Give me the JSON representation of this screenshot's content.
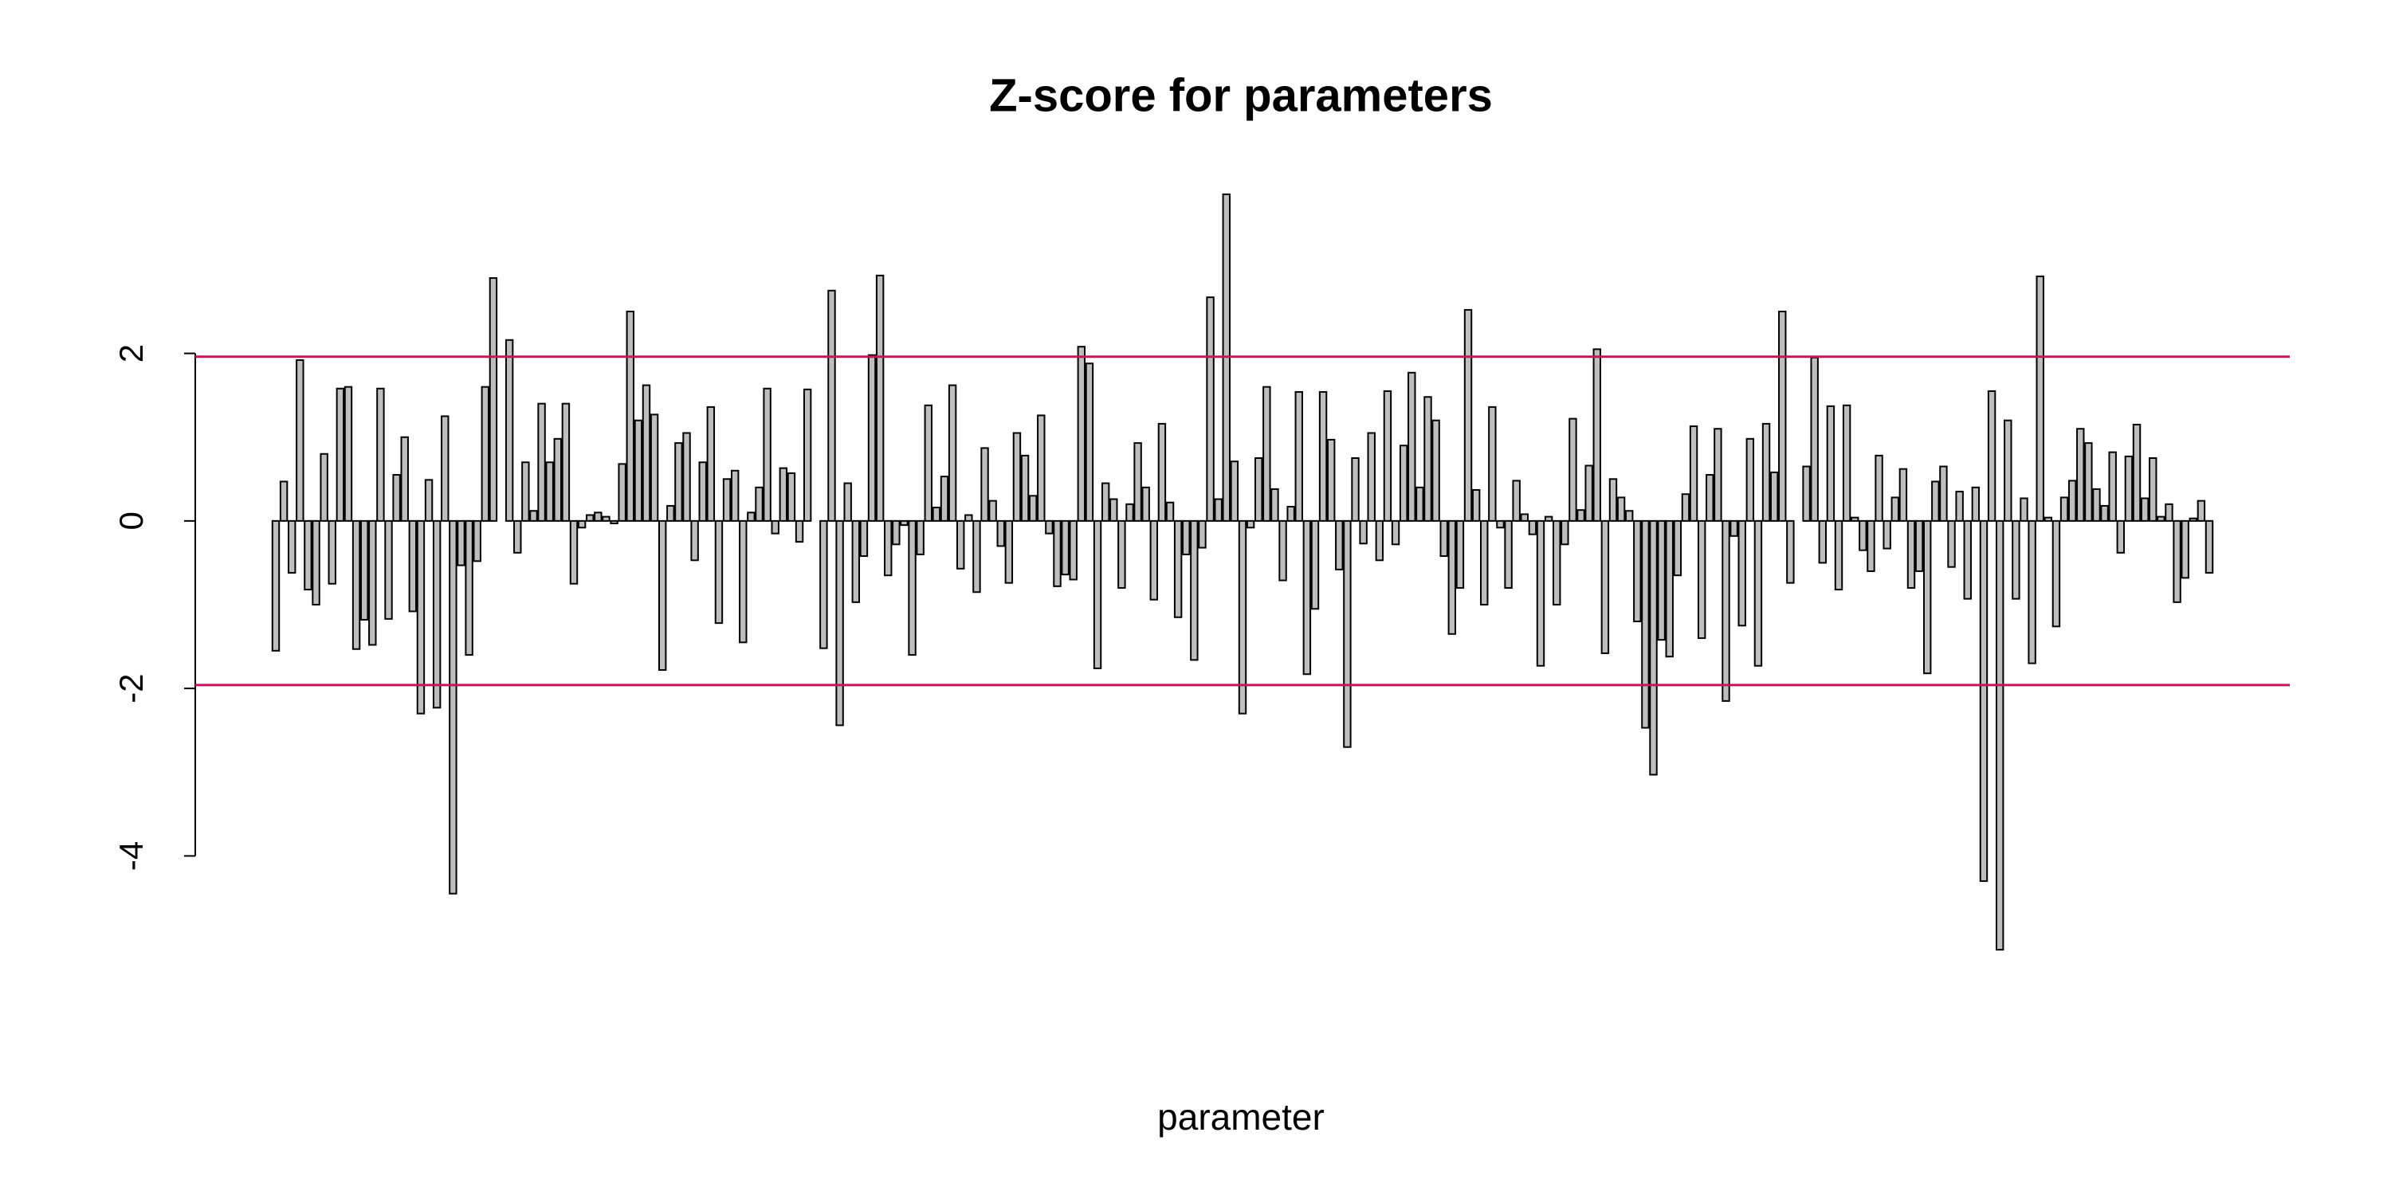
{
  "chart_data": {
    "type": "bar",
    "title": "Z-score for parameters",
    "x_label": "parameter",
    "color": "#bebebe",
    "ylim": [
      -5.48,
      4.26
    ],
    "yticks": [
      -4,
      -2,
      0,
      2
    ],
    "hlines": [
      1.96,
      -1.96
    ],
    "hline_color": "#c2185b",
    "values": [
      -1.55,
      0.47,
      -0.62,
      1.92,
      -0.82,
      -1.0,
      0.8,
      -0.75,
      1.58,
      1.6,
      -1.53,
      -1.18,
      -1.48,
      1.58,
      -1.17,
      0.55,
      1.0,
      -1.08,
      -2.3,
      0.49,
      -2.23,
      1.25,
      -4.45,
      -0.53,
      -1.6,
      -0.48,
      1.6,
      2.9,
      0.0,
      2.16,
      -0.38,
      0.7,
      0.12,
      1.4,
      0.7,
      0.98,
      1.4,
      -0.75,
      -0.08,
      0.07,
      0.1,
      0.05,
      -0.03,
      0.68,
      2.5,
      1.2,
      1.62,
      1.27,
      -1.78,
      0.18,
      0.93,
      1.05,
      -0.47,
      0.7,
      1.36,
      -1.22,
      0.5,
      0.6,
      -1.45,
      0.1,
      0.4,
      1.58,
      -0.15,
      0.63,
      0.57,
      -0.25,
      1.57,
      0.0,
      -1.52,
      2.75,
      -2.44,
      0.45,
      -0.97,
      -0.42,
      1.98,
      2.93,
      -0.65,
      -0.28,
      -0.05,
      -1.6,
      -0.4,
      1.38,
      0.16,
      0.53,
      1.62,
      -0.57,
      0.07,
      -0.85,
      0.87,
      0.24,
      -0.3,
      -0.74,
      1.05,
      0.78,
      0.3,
      1.26,
      -0.15,
      -0.78,
      -0.64,
      -0.7,
      2.08,
      1.88,
      -1.76,
      0.45,
      0.26,
      -0.8,
      0.2,
      0.93,
      0.4,
      -0.94,
      1.16,
      0.22,
      -1.15,
      -0.4,
      -1.66,
      -0.32,
      2.67,
      0.26,
      3.9,
      0.71,
      -2.3,
      -0.08,
      0.75,
      1.6,
      0.38,
      -0.71,
      0.17,
      1.54,
      -1.83,
      -1.05,
      1.54,
      0.97,
      -0.58,
      -2.7,
      0.75,
      -0.27,
      1.05,
      -0.47,
      1.55,
      -0.28,
      0.9,
      1.77,
      0.4,
      1.48,
      1.2,
      -0.42,
      -1.35,
      -0.8,
      2.52,
      0.37,
      -1.0,
      1.36,
      -0.08,
      -0.8,
      0.48,
      0.08,
      -0.16,
      -1.73,
      0.05,
      -1.0,
      -0.28,
      1.22,
      0.13,
      0.66,
      2.05,
      -1.58,
      0.5,
      0.28,
      0.12,
      -1.2,
      -2.47,
      -3.03,
      -1.42,
      -1.62,
      -0.65,
      0.32,
      1.13,
      -1.4,
      0.55,
      1.1,
      -2.15,
      -0.18,
      -1.25,
      0.98,
      -1.73,
      1.16,
      0.58,
      2.5,
      -0.74,
      0.0,
      0.65,
      1.95,
      -0.5,
      1.37,
      -0.82,
      1.38,
      0.04,
      -0.35,
      -0.6,
      0.78,
      -0.33,
      0.28,
      0.62,
      -0.8,
      -0.6,
      -1.82,
      0.47,
      0.65,
      -0.55,
      0.35,
      -0.93,
      0.4,
      -4.3,
      1.55,
      -5.12,
      1.2,
      -0.93,
      0.27,
      -1.7,
      2.92,
      0.04,
      -1.26,
      0.28,
      0.48,
      1.1,
      0.93,
      0.38,
      0.18,
      0.82,
      -0.38,
      0.77,
      1.15,
      0.27,
      0.75,
      0.05,
      0.2,
      -0.97,
      -0.68,
      0.03,
      0.24,
      -0.62
    ]
  }
}
